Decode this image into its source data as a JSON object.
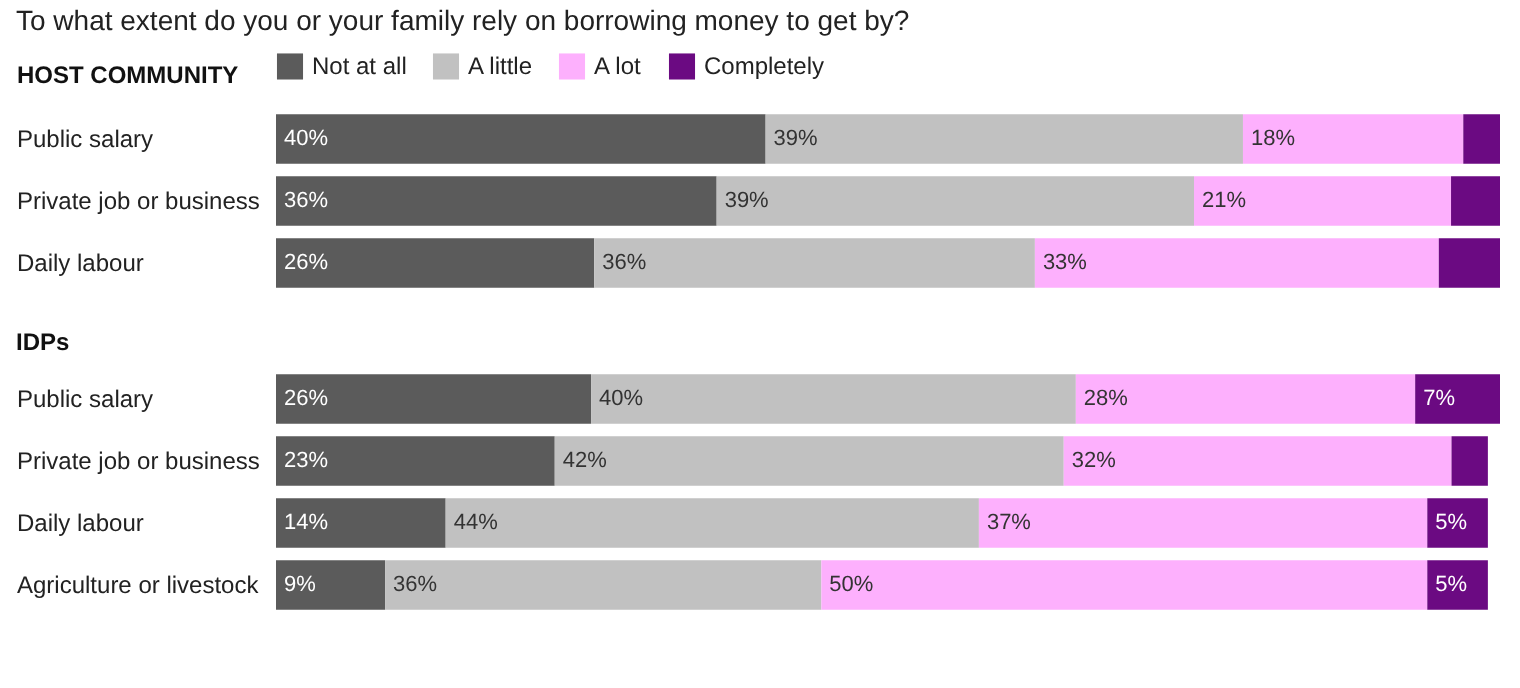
{
  "chart_data": [
    {
      "type": "bar",
      "orientation": "horizontal",
      "stacked": true,
      "title": "To what extent do you or your family rely on borrowing money to get by?",
      "subtitle": "HOST COMMUNITY",
      "categories": [
        "Public salary",
        "Private job or business",
        "Daily labour"
      ],
      "legend": "top left",
      "tick_labels": "y",
      "series": [
        {
          "name": "Not at all",
          "color": "#5b5b5b",
          "values": [
            40,
            36,
            26
          ],
          "value_labels": [
            "40%",
            "36%",
            "26%"
          ]
        },
        {
          "name": "A little",
          "color": "#c1c1c1",
          "values": [
            39,
            39,
            36
          ],
          "value_labels": [
            "39%",
            "39%",
            "36%"
          ]
        },
        {
          "name": "A lot",
          "color": "#fdb0fd",
          "values": [
            18,
            21,
            33
          ],
          "value_labels": [
            "18%",
            "21%",
            "33%"
          ]
        },
        {
          "name": "Completely",
          "color": "#6b0a82",
          "values": [
            3,
            4,
            5
          ],
          "value_labels": [
            null,
            null,
            null
          ]
        }
      ]
    },
    {
      "type": "bar",
      "orientation": "horizontal",
      "stacked": true,
      "title": "IDPs",
      "categories": [
        "Public salary",
        "Private job or business",
        "Daily labour",
        "Agriculture or livestock"
      ],
      "tick_labels": "y",
      "series": [
        {
          "color": "#5b5b5b",
          "values": [
            26,
            23,
            14,
            9
          ],
          "value_labels": [
            "26%",
            "23%",
            "14%",
            "9%"
          ]
        },
        {
          "color": "#c1c1c1",
          "values": [
            40,
            42,
            44,
            36
          ],
          "value_labels": [
            "40%",
            "42%",
            "44%",
            "36%"
          ]
        },
        {
          "color": "#fdb0fd",
          "values": [
            28,
            32,
            37,
            50
          ],
          "value_labels": [
            "28%",
            "32%",
            "37%",
            "50%"
          ]
        },
        {
          "color": "#6b0a82",
          "values": [
            7,
            3,
            5,
            5
          ],
          "value_labels": [
            "7%",
            null,
            "5%",
            "5%"
          ]
        }
      ]
    }
  ]
}
